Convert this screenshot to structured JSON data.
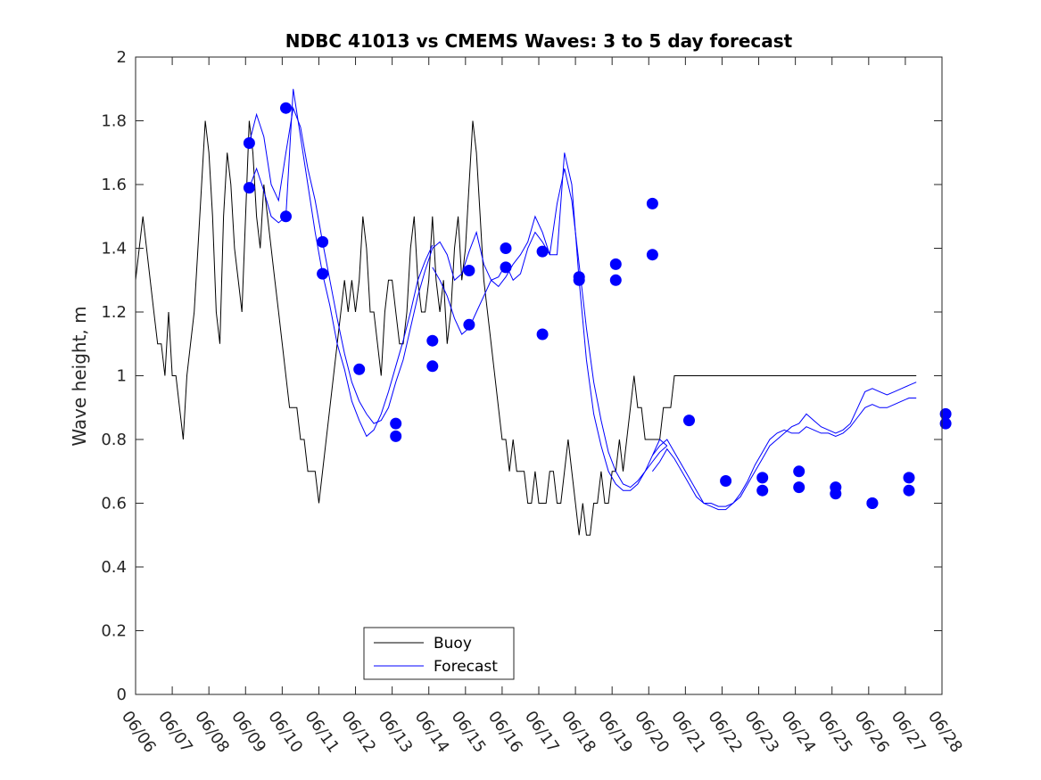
{
  "chart_data": {
    "type": "line",
    "title": "NDBC 41013 vs CMEMS Waves: 3 to 5 day forecast",
    "xlabel": "",
    "ylabel": "Wave height, m",
    "xlim": [
      "06/06",
      "06/28"
    ],
    "ylim": [
      0,
      2
    ],
    "x_tick_labels": [
      "06/06",
      "06/07",
      "06/08",
      "06/09",
      "06/10",
      "06/11",
      "06/12",
      "06/13",
      "06/14",
      "06/15",
      "06/16",
      "06/17",
      "06/18",
      "06/19",
      "06/20",
      "06/21",
      "06/22",
      "06/23",
      "06/24",
      "06/25",
      "06/26",
      "06/27",
      "06/28"
    ],
    "y_ticks": [
      0,
      0.2,
      0.4,
      0.6,
      0.8,
      1,
      1.2,
      1.4,
      1.6,
      1.8,
      2
    ],
    "y_tick_labels": [
      "0",
      "0.2",
      "0.4",
      "0.6",
      "0.8",
      "1",
      "1.2",
      "1.4",
      "1.6",
      "1.8",
      "2"
    ],
    "grid": false,
    "legend": {
      "position": "bottom-center",
      "entries": [
        "Buoy",
        "Forecast"
      ]
    },
    "colors": {
      "buoy": "#000000",
      "forecast": "#0000ff",
      "marker": "#0000ff"
    },
    "series": [
      {
        "name": "Buoy",
        "x_days": [
          0,
          0.1,
          0.2,
          0.3,
          0.4,
          0.5,
          0.6,
          0.7,
          0.8,
          0.9,
          1.0,
          1.1,
          1.2,
          1.3,
          1.4,
          1.5,
          1.6,
          1.7,
          1.8,
          1.9,
          2.0,
          2.1,
          2.2,
          2.3,
          2.4,
          2.5,
          2.6,
          2.7,
          2.8,
          2.9,
          3.0,
          3.1,
          3.2,
          3.3,
          3.4,
          3.5,
          3.6,
          3.7,
          3.8,
          3.9,
          4.0,
          4.1,
          4.2,
          4.3,
          4.4,
          4.5,
          4.6,
          4.7,
          4.8,
          4.9,
          5.0,
          5.1,
          5.2,
          5.3,
          5.4,
          5.5,
          5.6,
          5.7,
          5.8,
          5.9,
          6.0,
          6.1,
          6.2,
          6.3,
          6.4,
          6.5,
          6.6,
          6.7,
          6.8,
          6.9,
          7.0,
          7.1,
          7.2,
          7.3,
          7.4,
          7.5,
          7.6,
          7.7,
          7.8,
          7.9,
          8.0,
          8.1,
          8.2,
          8.3,
          8.4,
          8.5,
          8.6,
          8.7,
          8.8,
          8.9,
          9.0,
          9.1,
          9.2,
          9.3,
          9.4,
          9.5,
          9.6,
          9.7,
          9.8,
          9.9,
          10.0,
          10.1,
          10.2,
          10.3,
          10.4,
          10.5,
          10.6,
          10.7,
          10.8,
          10.9,
          11.0,
          11.1,
          11.2,
          11.3,
          11.4,
          11.5,
          11.6,
          11.7,
          11.8,
          11.9,
          12.0,
          12.1,
          12.2,
          12.3,
          12.4,
          12.5,
          12.6,
          12.7,
          12.8,
          12.9,
          13.0,
          13.1,
          13.2,
          13.3,
          13.4,
          13.5,
          13.6,
          13.7,
          13.8,
          13.9,
          14.0,
          14.1,
          14.2,
          14.3,
          14.4,
          14.5,
          14.6,
          14.7,
          14.8,
          14.9,
          15.0,
          15.1,
          15.2,
          15.3,
          15.4,
          15.5,
          15.6,
          15.7,
          15.8,
          15.9,
          16.0,
          16.1,
          16.2,
          16.3,
          16.4,
          16.5,
          16.6,
          16.7,
          16.8,
          16.9,
          17.0,
          17.1,
          17.2,
          17.3,
          17.4,
          17.5,
          17.6,
          17.7,
          17.8,
          17.9,
          18.0,
          18.1,
          18.2,
          18.3,
          18.4,
          18.5,
          18.6,
          18.7,
          18.8,
          18.9,
          19.0,
          19.1,
          19.2,
          19.3,
          19.4,
          19.5,
          19.6,
          19.7,
          19.8,
          19.9,
          20.0,
          20.1,
          20.2,
          20.3,
          20.4,
          20.5,
          20.6,
          20.7,
          20.8,
          20.9,
          21.0,
          21.1,
          21.2,
          21.3
        ],
        "values": [
          1.3,
          1.4,
          1.5,
          1.4,
          1.3,
          1.2,
          1.1,
          1.1,
          1.0,
          1.2,
          1.0,
          1.0,
          0.9,
          0.8,
          1.0,
          1.1,
          1.2,
          1.4,
          1.6,
          1.8,
          1.7,
          1.5,
          1.2,
          1.1,
          1.5,
          1.7,
          1.6,
          1.4,
          1.3,
          1.2,
          1.5,
          1.8,
          1.7,
          1.5,
          1.4,
          1.6,
          1.5,
          1.4,
          1.3,
          1.2,
          1.1,
          1.0,
          0.9,
          0.9,
          0.9,
          0.8,
          0.8,
          0.7,
          0.7,
          0.7,
          0.6,
          0.7,
          0.8,
          0.9,
          1.0,
          1.1,
          1.2,
          1.3,
          1.2,
          1.3,
          1.2,
          1.3,
          1.5,
          1.4,
          1.2,
          1.2,
          1.1,
          1.0,
          1.2,
          1.3,
          1.3,
          1.2,
          1.1,
          1.1,
          1.2,
          1.4,
          1.5,
          1.3,
          1.2,
          1.2,
          1.3,
          1.5,
          1.3,
          1.2,
          1.3,
          1.1,
          1.2,
          1.4,
          1.5,
          1.3,
          1.4,
          1.6,
          1.8,
          1.7,
          1.5,
          1.3,
          1.2,
          1.1,
          1.0,
          0.9,
          0.8,
          0.8,
          0.7,
          0.8,
          0.7,
          0.7,
          0.7,
          0.6,
          0.6,
          0.7,
          0.6,
          0.6,
          0.6,
          0.7,
          0.7,
          0.6,
          0.6,
          0.7,
          0.8,
          0.7,
          0.6,
          0.5,
          0.6,
          0.5,
          0.5,
          0.6,
          0.6,
          0.7,
          0.6,
          0.6,
          0.7,
          0.7,
          0.8,
          0.7,
          0.8,
          0.9,
          1.0,
          0.9,
          0.9,
          0.8,
          0.8,
          0.8,
          0.8,
          0.8,
          0.9,
          0.9,
          0.9,
          1.0,
          1.0,
          1.0,
          1.0,
          1.0,
          1.0,
          1.0,
          1.0,
          1.0,
          1.0,
          1.0,
          1.0,
          1.0,
          1.0,
          1.0,
          1.0,
          1.0,
          1.0,
          1.0,
          1.0,
          1.0,
          1.0,
          1.0,
          1.0,
          1.0,
          1.0,
          1.0,
          1.0,
          1.0,
          1.0,
          1.0,
          1.0,
          1.0,
          1.0,
          1.0,
          1.0,
          1.0,
          1.0,
          1.0,
          1.0,
          1.0,
          1.0,
          1.0,
          1.0,
          1.0,
          1.0,
          1.0,
          1.0,
          1.0,
          1.0,
          1.0,
          1.0,
          1.0,
          1.0,
          1.0,
          1.0,
          1.0,
          1.0,
          1.0,
          1.0,
          1.0,
          1.0,
          1.0,
          1.0,
          1.0,
          1.0,
          1.0
        ]
      },
      {
        "name": "Forecast",
        "runs": [
          {
            "x_days": [
              3.1,
              3.3,
              3.5,
              3.7,
              3.9,
              4.1,
              4.3,
              4.5,
              4.7,
              4.9,
              5.1,
              5.3,
              5.5,
              5.7,
              5.9,
              6.1,
              6.3,
              6.5,
              6.7,
              6.9,
              7.1,
              7.3,
              7.5,
              7.7,
              7.9,
              8.1
            ],
            "values": [
              1.73,
              1.82,
              1.75,
              1.6,
              1.55,
              1.7,
              1.84,
              1.78,
              1.65,
              1.55,
              1.42,
              1.3,
              1.18,
              1.07,
              0.98,
              0.92,
              0.88,
              0.85,
              0.86,
              0.9,
              0.98,
              1.05,
              1.15,
              1.25,
              1.33,
              1.4
            ]
          },
          {
            "x_days": [
              3.1,
              3.3,
              3.5,
              3.7,
              3.9,
              4.1,
              4.3,
              4.5,
              4.7,
              4.9,
              5.1,
              5.3,
              5.5,
              5.7,
              5.9,
              6.1,
              6.3,
              6.5,
              6.7,
              6.9,
              7.1,
              7.3,
              7.5,
              7.7,
              7.9,
              8.1
            ],
            "values": [
              1.59,
              1.65,
              1.58,
              1.5,
              1.48,
              1.5,
              1.9,
              1.75,
              1.6,
              1.45,
              1.32,
              1.22,
              1.1,
              1.02,
              0.92,
              0.86,
              0.81,
              0.83,
              0.88,
              0.95,
              1.03,
              1.11,
              1.2,
              1.3,
              1.36,
              1.41
            ]
          },
          {
            "x_days": [
              8.1,
              8.3,
              8.5,
              8.7,
              8.9,
              9.1,
              9.3,
              9.5,
              9.7,
              9.9,
              10.1,
              10.3,
              10.5,
              10.7,
              10.9,
              11.1,
              11.3,
              11.5,
              11.7,
              11.9,
              12.1,
              12.3,
              12.5,
              12.7,
              12.9,
              13.1,
              13.3,
              13.5,
              13.7,
              13.9,
              14.1,
              14.3,
              14.5
            ],
            "values": [
              1.4,
              1.42,
              1.38,
              1.3,
              1.32,
              1.39,
              1.45,
              1.35,
              1.3,
              1.28,
              1.31,
              1.35,
              1.38,
              1.42,
              1.5,
              1.45,
              1.38,
              1.54,
              1.65,
              1.55,
              1.35,
              1.15,
              0.98,
              0.86,
              0.76,
              0.7,
              0.66,
              0.65,
              0.67,
              0.7,
              0.73,
              0.76,
              0.78
            ]
          },
          {
            "x_days": [
              8.1,
              8.3,
              8.5,
              8.7,
              8.9,
              9.1,
              9.3,
              9.5,
              9.7,
              9.9,
              10.1,
              10.3,
              10.5,
              10.7,
              10.9,
              11.1,
              11.3,
              11.5,
              11.7,
              11.9,
              12.1,
              12.3,
              12.5,
              12.7,
              12.9,
              13.1,
              13.3,
              13.5,
              13.7,
              13.9,
              14.1,
              14.3,
              14.5
            ],
            "values": [
              1.34,
              1.3,
              1.25,
              1.18,
              1.13,
              1.15,
              1.2,
              1.25,
              1.3,
              1.31,
              1.35,
              1.3,
              1.32,
              1.4,
              1.45,
              1.42,
              1.38,
              1.38,
              1.7,
              1.6,
              1.3,
              1.05,
              0.88,
              0.78,
              0.7,
              0.66,
              0.64,
              0.64,
              0.66,
              0.7,
              0.75,
              0.8,
              0.78
            ]
          },
          {
            "x_days": [
              14.1,
              14.3,
              14.5,
              14.7,
              14.9,
              15.1,
              15.3,
              15.5,
              15.7,
              15.9,
              16.1,
              16.3,
              16.5,
              16.7,
              16.9,
              17.1,
              17.3,
              17.5,
              17.7,
              17.9,
              18.1,
              18.3,
              18.5,
              18.7,
              18.9,
              19.1,
              19.3,
              19.5,
              19.7,
              19.9,
              20.1,
              20.3,
              20.5,
              20.7,
              20.9,
              21.1,
              21.3
            ],
            "values": [
              0.75,
              0.78,
              0.8,
              0.76,
              0.72,
              0.68,
              0.64,
              0.6,
              0.6,
              0.59,
              0.59,
              0.6,
              0.62,
              0.66,
              0.7,
              0.74,
              0.78,
              0.8,
              0.82,
              0.84,
              0.85,
              0.88,
              0.86,
              0.84,
              0.83,
              0.82,
              0.83,
              0.85,
              0.9,
              0.95,
              0.96,
              0.95,
              0.94,
              0.95,
              0.96,
              0.97,
              0.98
            ]
          },
          {
            "x_days": [
              14.1,
              14.3,
              14.5,
              14.7,
              14.9,
              15.1,
              15.3,
              15.5,
              15.7,
              15.9,
              16.1,
              16.3,
              16.5,
              16.7,
              16.9,
              17.1,
              17.3,
              17.5,
              17.7,
              17.9,
              18.1,
              18.3,
              18.5,
              18.7,
              18.9,
              19.1,
              19.3,
              19.5,
              19.7,
              19.9,
              20.1,
              20.3,
              20.5,
              20.7,
              20.9,
              21.1,
              21.3
            ],
            "values": [
              0.7,
              0.73,
              0.77,
              0.74,
              0.7,
              0.66,
              0.62,
              0.6,
              0.59,
              0.58,
              0.58,
              0.6,
              0.63,
              0.67,
              0.72,
              0.76,
              0.8,
              0.82,
              0.83,
              0.82,
              0.82,
              0.84,
              0.83,
              0.82,
              0.82,
              0.81,
              0.82,
              0.84,
              0.87,
              0.9,
              0.91,
              0.9,
              0.9,
              0.91,
              0.92,
              0.93,
              0.93
            ]
          }
        ]
      }
    ],
    "markers": {
      "x_days": [
        3.1,
        3.1,
        4.1,
        4.1,
        5.1,
        5.1,
        6.1,
        7.1,
        7.1,
        8.1,
        8.1,
        9.1,
        9.1,
        10.1,
        10.1,
        11.1,
        11.1,
        12.1,
        12.1,
        13.1,
        13.1,
        14.1,
        14.1,
        15.1,
        16.1,
        17.1,
        17.1,
        18.1,
        18.1,
        19.1,
        19.1,
        20.1,
        20.1,
        21.1,
        21.1,
        22.1,
        22.1
      ],
      "values": [
        1.73,
        1.59,
        1.84,
        1.5,
        1.42,
        1.32,
        1.02,
        0.85,
        0.81,
        1.11,
        1.03,
        1.33,
        1.16,
        1.4,
        1.34,
        1.39,
        1.13,
        1.31,
        1.3,
        1.35,
        1.3,
        1.54,
        1.38,
        0.86,
        0.67,
        0.64,
        0.68,
        0.65,
        0.7,
        0.65,
        0.63,
        0.6,
        0.6,
        0.68,
        0.64,
        0.88,
        0.85
      ]
    }
  }
}
